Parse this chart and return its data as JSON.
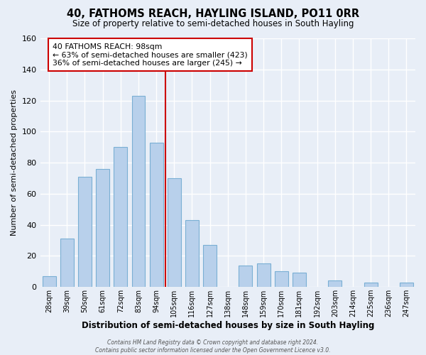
{
  "title": "40, FATHOMS REACH, HAYLING ISLAND, PO11 0RR",
  "subtitle": "Size of property relative to semi-detached houses in South Hayling",
  "xlabel": "Distribution of semi-detached houses by size in South Hayling",
  "ylabel": "Number of semi-detached properties",
  "footer1": "Contains HM Land Registry data © Crown copyright and database right 2024.",
  "footer2": "Contains public sector information licensed under the Open Government Licence v3.0.",
  "bin_labels": [
    "28sqm",
    "39sqm",
    "50sqm",
    "61sqm",
    "72sqm",
    "83sqm",
    "94sqm",
    "105sqm",
    "116sqm",
    "127sqm",
    "138sqm",
    "148sqm",
    "159sqm",
    "170sqm",
    "181sqm",
    "192sqm",
    "203sqm",
    "214sqm",
    "225sqm",
    "236sqm",
    "247sqm"
  ],
  "bar_heights": [
    7,
    31,
    71,
    76,
    90,
    123,
    93,
    70,
    43,
    27,
    0,
    14,
    15,
    10,
    9,
    0,
    4,
    0,
    3,
    0,
    3
  ],
  "bar_color": "#b8d0eb",
  "bar_edge_color": "#7aafd4",
  "vline_color": "#cc0000",
  "annotation_title": "40 FATHOMS REACH: 98sqm",
  "annotation_line1": "← 63% of semi-detached houses are smaller (423)",
  "annotation_line2": "36% of semi-detached houses are larger (245) →",
  "annotation_box_color": "#ffffff",
  "annotation_box_edge": "#cc0000",
  "ylim": [
    0,
    160
  ],
  "yticks": [
    0,
    20,
    40,
    60,
    80,
    100,
    120,
    140,
    160
  ],
  "bg_color": "#e8eef7",
  "grid_color": "#ffffff"
}
